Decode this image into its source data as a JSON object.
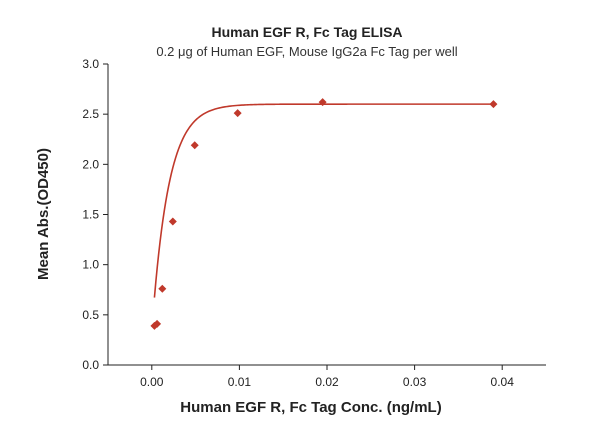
{
  "chart_data": {
    "type": "scatter",
    "title": "Human EGF R, Fc Tag ELISA",
    "subtitle": "0.2 μg of Human EGF, Mouse IgG2a Fc Tag per well",
    "xlabel": "Human EGF R, Fc Tag Conc. (ng/mL)",
    "ylabel": "Mean Abs.(OD450)",
    "xlim": [
      -0.005,
      0.045
    ],
    "ylim": [
      0,
      3.0
    ],
    "x_ticks": [
      0.0,
      0.01,
      0.02,
      0.03,
      0.04
    ],
    "x_tick_labels": [
      "0.00",
      "0.01",
      "0.02",
      "0.03",
      "0.04"
    ],
    "y_ticks": [
      0.0,
      0.5,
      1.0,
      1.5,
      2.0,
      2.5,
      3.0
    ],
    "y_tick_labels": [
      "0.0",
      "0.5",
      "1.0",
      "1.5",
      "2.0",
      "2.5",
      "3.0"
    ],
    "grid": false,
    "marker_color": "#c0392b",
    "curve_color": "#c0392b",
    "series": [
      {
        "marker": "diamond",
        "x": [
          0.0003,
          0.0006,
          0.0012,
          0.0024,
          0.0049,
          0.0098,
          0.0195,
          0.039
        ],
        "y": [
          0.39,
          0.41,
          0.76,
          1.43,
          2.19,
          2.51,
          2.62,
          2.6
        ]
      }
    ],
    "fit": {
      "type": "logistic",
      "bottom": 0.34,
      "top": 2.6,
      "k": 530
    }
  }
}
